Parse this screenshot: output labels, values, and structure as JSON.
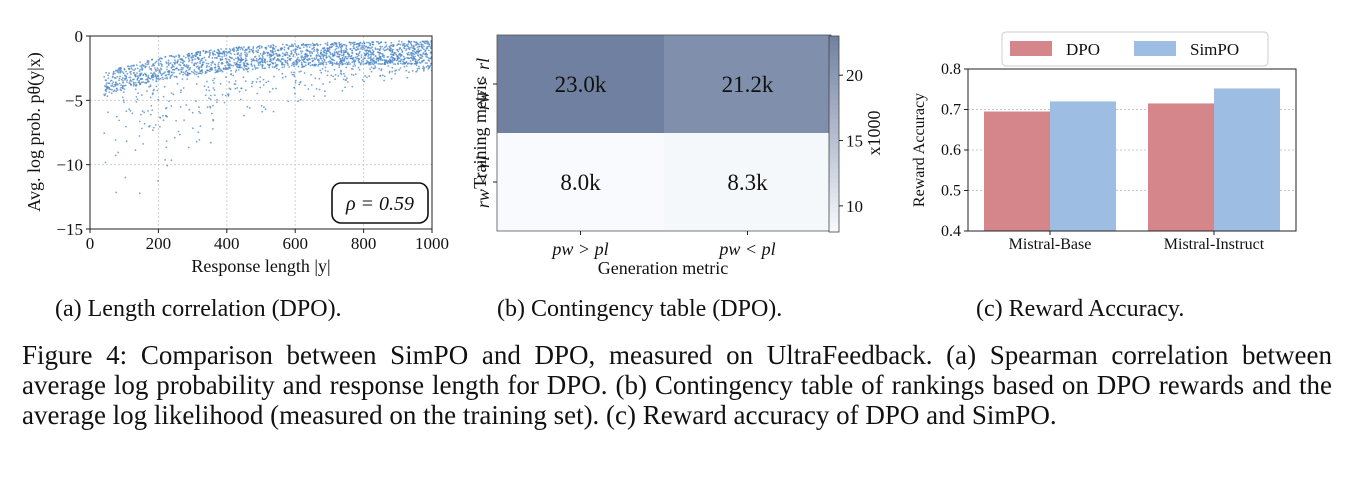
{
  "panels": [
    {
      "id": "a",
      "caption": "(a) Length correlation (DPO).",
      "chart_data": {
        "type": "scatter",
        "xlabel": "Response length |y|",
        "ylabel": "Avg. log prob. pθ(y|x)",
        "xlim": [
          0,
          1000
        ],
        "ylim": [
          -15,
          0
        ],
        "xticks": [
          "0",
          "200",
          "400",
          "600",
          "800",
          "1000"
        ],
        "yticks": [
          "0",
          "−5",
          "−10",
          "−15"
        ],
        "grid": true,
        "annotation": "ρ = 0.59",
        "point_color": "#4a86c5"
      }
    },
    {
      "id": "b",
      "caption": "(b) Contingency table (DPO).",
      "chart_data": {
        "type": "heatmap",
        "xlabel": "Generation metric",
        "ylabel": "Training metric",
        "col_labels": [
          "pw > pl",
          "pw < pl"
        ],
        "row_labels": [
          "rw > rl",
          "rw < rl"
        ],
        "values": [
          [
            23.0,
            21.2
          ],
          [
            8.0,
            8.3
          ]
        ],
        "cell_text": [
          [
            "23.0k",
            "21.2k"
          ],
          [
            "8.0k",
            "8.3k"
          ]
        ],
        "colorbar_label": "x1000",
        "colorbar_ticks": [
          "10",
          "15",
          "20"
        ],
        "colorbar_range": [
          8.0,
          23.0
        ]
      }
    },
    {
      "id": "c",
      "caption": "(c) Reward Accuracy.",
      "chart_data": {
        "type": "bar",
        "categories": [
          "Mistral-Base",
          "Mistral-Instruct"
        ],
        "series": [
          {
            "name": "DPO",
            "values": [
              0.695,
              0.715
            ],
            "color": "#d4868a"
          },
          {
            "name": "SimPO",
            "values": [
              0.72,
              0.752
            ],
            "color": "#9dbde3"
          }
        ],
        "ylabel": "Reward Accuracy",
        "ylim": [
          0.4,
          0.8
        ],
        "yticks": [
          "0.4",
          "0.5",
          "0.6",
          "0.7",
          "0.8"
        ],
        "legend": "top-center",
        "grid": "y"
      }
    }
  ],
  "figure_caption": "Figure 4: Comparison between SimPO and DPO, measured on UltraFeedback. (a) Spearman correlation between average log probability and response length for DPO. (b) Contingency table of rankings based on DPO rewards and the average log likelihood (measured on the training set). (c) Reward accuracy of DPO and SimPO."
}
